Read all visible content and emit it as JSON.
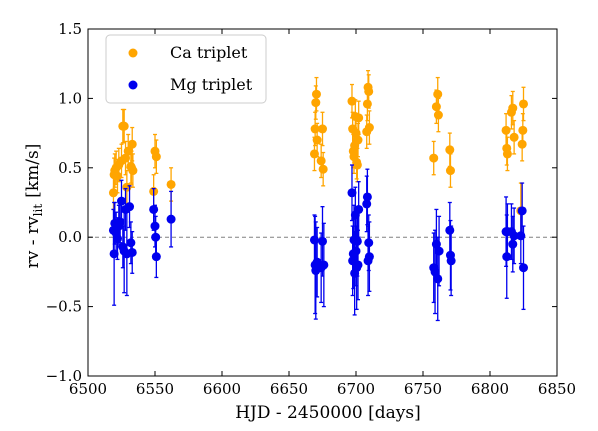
{
  "chart_data": {
    "type": "scatter",
    "xlabel": "HJD - 2450000 [days]",
    "ylabel_main": "rv - rv",
    "ylabel_sub": "lit",
    "ylabel_unit": "[km/s]",
    "xlim": [
      6500,
      6850
    ],
    "ylim": [
      -1.0,
      1.5
    ],
    "xticks": [
      "6500",
      "6550",
      "6600",
      "6650",
      "6700",
      "6750",
      "6800",
      "6850"
    ],
    "yticks": [
      "−1.0",
      "−0.5",
      "0.0",
      "0.5",
      "1.0",
      "1.5"
    ],
    "xtick_values": [
      6500,
      6550,
      6600,
      6650,
      6700,
      6750,
      6800,
      6850
    ],
    "ytick_values": [
      -1.0,
      -0.5,
      0.0,
      0.5,
      1.0,
      1.5
    ],
    "reference_line": {
      "y": 0.0,
      "style": "dashed",
      "color": "#808080"
    },
    "legend": {
      "position": "top-left"
    },
    "series": [
      {
        "name": "Ca triplet",
        "color": "#FFA500",
        "points": [
          [
            6519,
            0.32,
            0.12
          ],
          [
            6519.5,
            0.45,
            0.12
          ],
          [
            6520,
            0.48,
            0.12
          ],
          [
            6521,
            0.5,
            0.12
          ],
          [
            6522,
            0.44,
            0.12
          ],
          [
            6523,
            0.52,
            0.12
          ],
          [
            6525,
            0.55,
            0.12
          ],
          [
            6526,
            0.8,
            0.12
          ],
          [
            6527,
            0.8,
            0.12
          ],
          [
            6528,
            0.57,
            0.12
          ],
          [
            6529,
            0.36,
            0.12
          ],
          [
            6530,
            0.62,
            0.12
          ],
          [
            6532,
            0.51,
            0.12
          ],
          [
            6532.5,
            0.5,
            0.12
          ],
          [
            6533,
            0.67,
            0.12
          ],
          [
            6533.5,
            0.48,
            0.12
          ],
          [
            6549,
            0.33,
            0.12
          ],
          [
            6550,
            0.62,
            0.12
          ],
          [
            6551,
            0.58,
            0.12
          ],
          [
            6562,
            0.38,
            0.12
          ],
          [
            6669,
            0.6,
            0.12
          ],
          [
            6669.5,
            0.78,
            0.12
          ],
          [
            6670,
            0.97,
            0.12
          ],
          [
            6670.5,
            1.03,
            0.12
          ],
          [
            6671,
            0.7,
            0.12
          ],
          [
            6674,
            0.55,
            0.12
          ],
          [
            6675,
            0.78,
            0.12
          ],
          [
            6675.5,
            0.49,
            0.12
          ],
          [
            6697,
            0.98,
            0.12
          ],
          [
            6697.5,
            0.78,
            0.12
          ],
          [
            6698,
            0.62,
            0.12
          ],
          [
            6698.5,
            0.58,
            0.12
          ],
          [
            6699,
            0.66,
            0.12
          ],
          [
            6699.5,
            0.87,
            0.12
          ],
          [
            6700,
            0.75,
            0.12
          ],
          [
            6700.5,
            0.54,
            0.12
          ],
          [
            6701,
            0.52,
            0.12
          ],
          [
            6701.5,
            0.7,
            0.12
          ],
          [
            6702,
            0.86,
            0.12
          ],
          [
            6708,
            0.76,
            0.12
          ],
          [
            6708.5,
            0.96,
            0.12
          ],
          [
            6709,
            1.08,
            0.12
          ],
          [
            6709.5,
            1.05,
            0.12
          ],
          [
            6710,
            0.79,
            0.12
          ],
          [
            6758,
            0.57,
            0.12
          ],
          [
            6760,
            0.94,
            0.12
          ],
          [
            6761,
            1.03,
            0.12
          ],
          [
            6761.5,
            0.88,
            0.12
          ],
          [
            6770,
            0.63,
            0.12
          ],
          [
            6770.5,
            0.48,
            0.12
          ],
          [
            6812,
            0.77,
            0.12
          ],
          [
            6812.5,
            0.64,
            0.12
          ],
          [
            6813,
            0.6,
            0.12
          ],
          [
            6816,
            0.9,
            0.12
          ],
          [
            6817,
            0.93,
            0.12
          ],
          [
            6818,
            0.72,
            0.12
          ],
          [
            6823,
            0.19,
            0.2
          ],
          [
            6824,
            0.67,
            0.12
          ],
          [
            6824.5,
            0.77,
            0.12
          ],
          [
            6825,
            0.96,
            0.12
          ]
        ]
      },
      {
        "name": "Mg triplet",
        "color": "#0000EE",
        "points": [
          [
            6519,
            0.05,
            0.15
          ],
          [
            6519.5,
            -0.12,
            0.37
          ],
          [
            6520,
            0.1,
            0.15
          ],
          [
            6521,
            0.03,
            0.15
          ],
          [
            6522,
            -0.01,
            0.15
          ],
          [
            6523,
            0.08,
            0.15
          ],
          [
            6524,
            0.11,
            0.15
          ],
          [
            6525,
            0.26,
            0.15
          ],
          [
            6526,
            -0.07,
            0.15
          ],
          [
            6527,
            -0.1,
            0.3
          ],
          [
            6528,
            0.2,
            0.15
          ],
          [
            6529,
            -0.12,
            0.3
          ],
          [
            6531,
            0.22,
            0.15
          ],
          [
            6532,
            -0.04,
            0.15
          ],
          [
            6533,
            -0.11,
            0.15
          ],
          [
            6549,
            0.2,
            0.15
          ],
          [
            6550,
            0.08,
            0.15
          ],
          [
            6550.5,
            0.0,
            0.15
          ],
          [
            6551,
            -0.14,
            0.15
          ],
          [
            6562,
            0.13,
            0.2
          ],
          [
            6669,
            -0.02,
            0.18
          ],
          [
            6669.5,
            -0.2,
            0.35
          ],
          [
            6670,
            -0.24,
            0.35
          ],
          [
            6671,
            -0.18,
            0.25
          ],
          [
            6674,
            -0.22,
            0.25
          ],
          [
            6675,
            -0.03,
            0.25
          ],
          [
            6676,
            -0.2,
            0.3
          ],
          [
            6697,
            0.32,
            0.2
          ],
          [
            6697.5,
            -0.17,
            0.25
          ],
          [
            6698,
            -0.12,
            0.25
          ],
          [
            6698.5,
            -0.02,
            0.25
          ],
          [
            6699,
            -0.26,
            0.3
          ],
          [
            6699.5,
            0.16,
            0.2
          ],
          [
            6700,
            -0.1,
            0.25
          ],
          [
            6700.5,
            -0.22,
            0.3
          ],
          [
            6701,
            -0.03,
            0.25
          ],
          [
            6701.5,
            -0.2,
            0.25
          ],
          [
            6702,
            0.2,
            0.2
          ],
          [
            6708,
            0.24,
            0.2
          ],
          [
            6708.5,
            0.29,
            0.2
          ],
          [
            6709,
            -0.17,
            0.25
          ],
          [
            6709.5,
            -0.04,
            0.2
          ],
          [
            6710,
            -0.14,
            0.25
          ],
          [
            6758,
            -0.22,
            0.25
          ],
          [
            6759,
            -0.25,
            0.3
          ],
          [
            6760,
            -0.05,
            0.25
          ],
          [
            6761,
            -0.3,
            0.3
          ],
          [
            6762,
            -0.1,
            0.25
          ],
          [
            6770,
            0.05,
            0.2
          ],
          [
            6770.5,
            -0.13,
            0.25
          ],
          [
            6771,
            -0.17,
            0.25
          ],
          [
            6812,
            0.04,
            0.25
          ],
          [
            6812.5,
            -0.14,
            0.3
          ],
          [
            6813,
            0.04,
            0.2
          ],
          [
            6816,
            0.04,
            0.2
          ],
          [
            6817,
            -0.05,
            0.2
          ],
          [
            6818,
            0.01,
            0.2
          ],
          [
            6823,
            0.01,
            0.2
          ],
          [
            6824,
            0.19,
            0.2
          ],
          [
            6825,
            -0.22,
            0.3
          ]
        ]
      }
    ]
  }
}
